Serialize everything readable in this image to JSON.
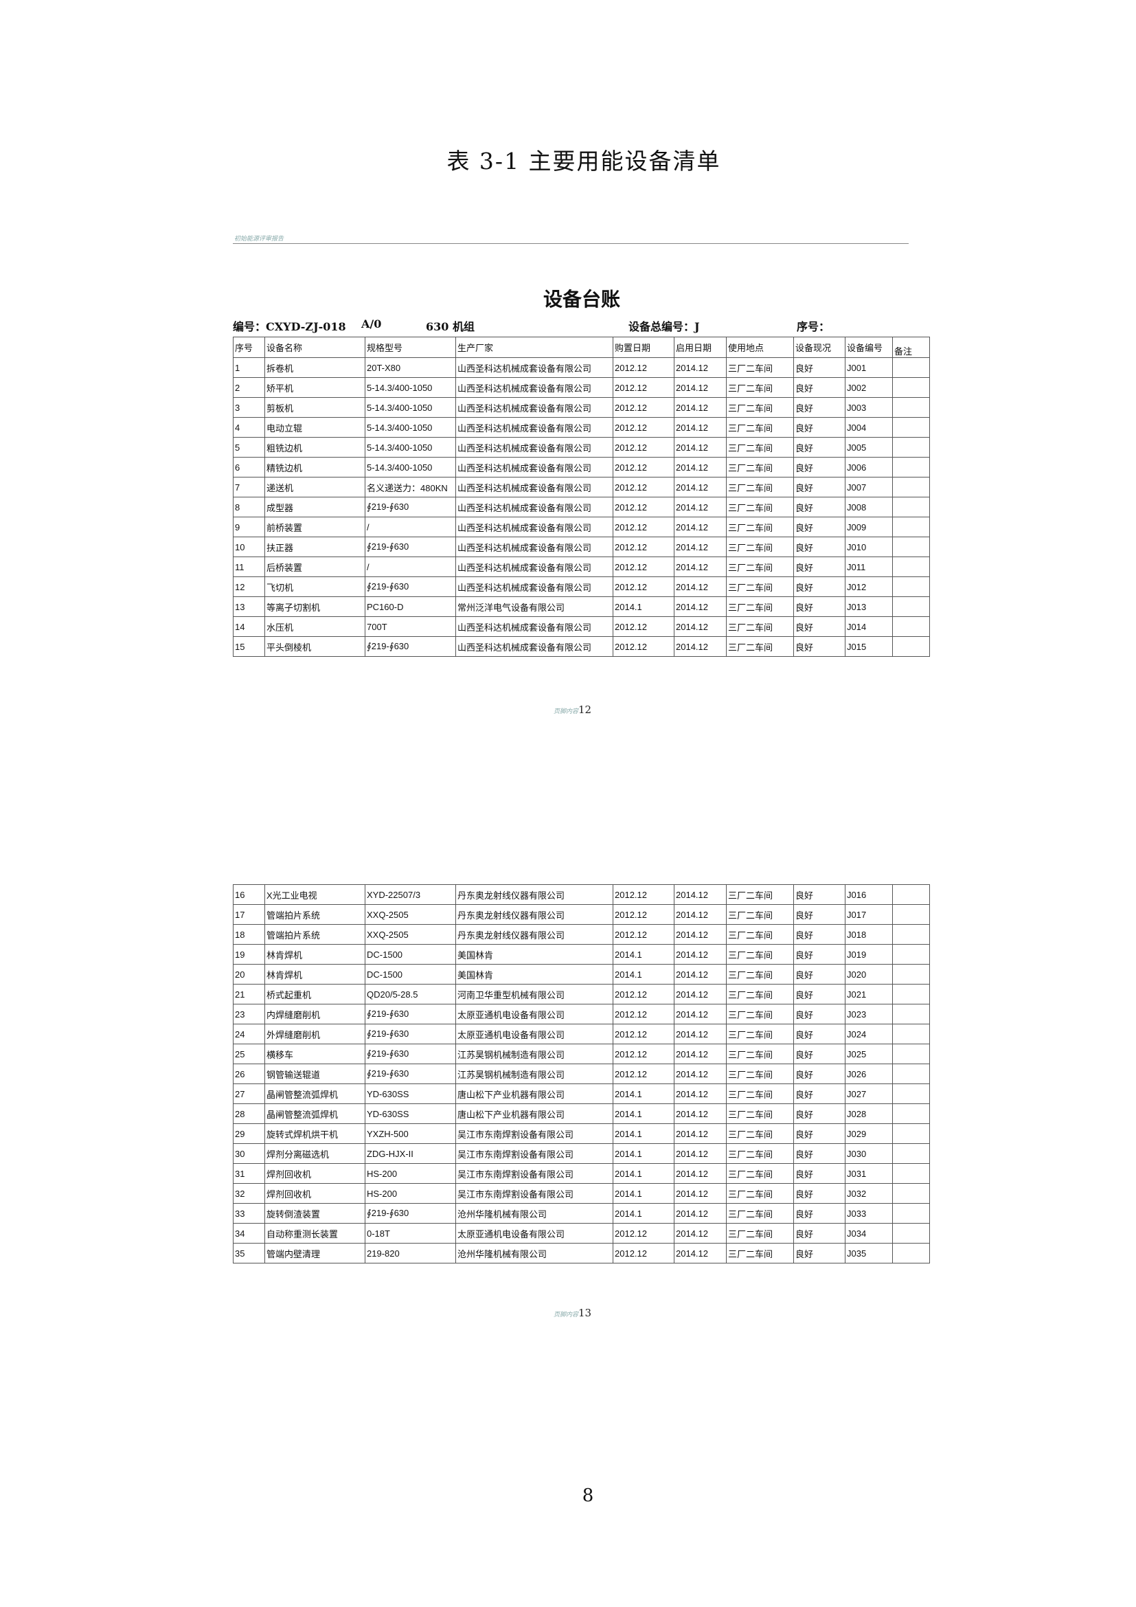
{
  "doc_title": "表 3-1  主要用能设备清单",
  "header_text": "初始能源评审报告",
  "ledger_title": "设备台账",
  "info": {
    "code": "编号：CXYD-ZJ-018",
    "rev": "A/0",
    "unit": "630 机组",
    "total_code": "设备总编号：J",
    "seq": "序号："
  },
  "columns": [
    "序号",
    "设备名称",
    "规格型号",
    "生产厂家",
    "购置日期",
    "启用日期",
    "使用地点",
    "设备现况",
    "设备编号",
    "备注"
  ],
  "rows1": [
    [
      "1",
      "拆卷机",
      "20T-X80",
      "山西圣科达机械成套设备有限公司",
      "2012.12",
      "2014.12",
      "三厂二车间",
      "良好",
      "J001",
      ""
    ],
    [
      "2",
      "矫平机",
      "5-14.3/400-1050",
      "山西圣科达机械成套设备有限公司",
      "2012.12",
      "2014.12",
      "三厂二车间",
      "良好",
      "J002",
      ""
    ],
    [
      "3",
      "剪板机",
      "5-14.3/400-1050",
      "山西圣科达机械成套设备有限公司",
      "2012.12",
      "2014.12",
      "三厂二车间",
      "良好",
      "J003",
      ""
    ],
    [
      "4",
      "电动立辊",
      "5-14.3/400-1050",
      "山西圣科达机械成套设备有限公司",
      "2012.12",
      "2014.12",
      "三厂二车间",
      "良好",
      "J004",
      ""
    ],
    [
      "5",
      "粗铣边机",
      "5-14.3/400-1050",
      "山西圣科达机械成套设备有限公司",
      "2012.12",
      "2014.12",
      "三厂二车间",
      "良好",
      "J005",
      ""
    ],
    [
      "6",
      "精铣边机",
      "5-14.3/400-1050",
      "山西圣科达机械成套设备有限公司",
      "2012.12",
      "2014.12",
      "三厂二车间",
      "良好",
      "J006",
      ""
    ],
    [
      "7",
      "递送机",
      "名义递送力：480KN",
      "山西圣科达机械成套设备有限公司",
      "2012.12",
      "2014.12",
      "三厂二车间",
      "良好",
      "J007",
      ""
    ],
    [
      "8",
      "成型器",
      "∮219-∮630",
      "山西圣科达机械成套设备有限公司",
      "2012.12",
      "2014.12",
      "三厂二车间",
      "良好",
      "J008",
      ""
    ],
    [
      "9",
      "前桥装置",
      "/",
      "山西圣科达机械成套设备有限公司",
      "2012.12",
      "2014.12",
      "三厂二车间",
      "良好",
      "J009",
      ""
    ],
    [
      "10",
      "扶正器",
      "∮219-∮630",
      "山西圣科达机械成套设备有限公司",
      "2012.12",
      "2014.12",
      "三厂二车间",
      "良好",
      "J010",
      ""
    ],
    [
      "11",
      "后桥装置",
      "/",
      "山西圣科达机械成套设备有限公司",
      "2012.12",
      "2014.12",
      "三厂二车间",
      "良好",
      "J011",
      ""
    ],
    [
      "12",
      "飞切机",
      "∮219-∮630",
      "山西圣科达机械成套设备有限公司",
      "2012.12",
      "2014.12",
      "三厂二车间",
      "良好",
      "J012",
      ""
    ],
    [
      "13",
      "等离子切割机",
      "PC160-D",
      "常州泛洋电气设备有限公司",
      "2014.1",
      "2014.12",
      "三厂二车间",
      "良好",
      "J013",
      ""
    ],
    [
      "14",
      "水压机",
      "700T",
      "山西圣科达机械成套设备有限公司",
      "2012.12",
      "2014.12",
      "三厂二车间",
      "良好",
      "J014",
      ""
    ],
    [
      "15",
      "平头倒棱机",
      "∮219-∮630",
      "山西圣科达机械成套设备有限公司",
      "2012.12",
      "2014.12",
      "三厂二车间",
      "良好",
      "J015",
      ""
    ]
  ],
  "footer1": {
    "label": "页脚内容",
    "num": "12"
  },
  "rows2": [
    [
      "16",
      "X光工业电视",
      "XYD-22507/3",
      "丹东奥龙射线仪器有限公司",
      "2012.12",
      "2014.12",
      "三厂二车间",
      "良好",
      "J016",
      ""
    ],
    [
      "17",
      "管端拍片系统",
      "XXQ-2505",
      "丹东奥龙射线仪器有限公司",
      "2012.12",
      "2014.12",
      "三厂二车间",
      "良好",
      "J017",
      ""
    ],
    [
      "18",
      "管端拍片系统",
      "XXQ-2505",
      "丹东奥龙射线仪器有限公司",
      "2012.12",
      "2014.12",
      "三厂二车间",
      "良好",
      "J018",
      ""
    ],
    [
      "19",
      "林肯焊机",
      "DC-1500",
      "美国林肯",
      "2014.1",
      "2014.12",
      "三厂二车间",
      "良好",
      "J019",
      ""
    ],
    [
      "20",
      "林肯焊机",
      "DC-1500",
      "美国林肯",
      "2014.1",
      "2014.12",
      "三厂二车间",
      "良好",
      "J020",
      ""
    ],
    [
      "21",
      "桥式起重机",
      "QD20/5-28.5",
      "河南卫华重型机械有限公司",
      "2012.12",
      "2014.12",
      "三厂二车间",
      "良好",
      "J021",
      ""
    ],
    [
      "23",
      "内焊缝磨削机",
      "∮219-∮630",
      "太原亚通机电设备有限公司",
      "2012.12",
      "2014.12",
      "三厂二车间",
      "良好",
      "J023",
      ""
    ],
    [
      "24",
      "外焊缝磨削机",
      "∮219-∮630",
      "太原亚通机电设备有限公司",
      "2012.12",
      "2014.12",
      "三厂二车间",
      "良好",
      "J024",
      ""
    ],
    [
      "25",
      "横移车",
      "∮219-∮630",
      "江苏昊钢机械制造有限公司",
      "2012.12",
      "2014.12",
      "三厂二车间",
      "良好",
      "J025",
      ""
    ],
    [
      "26",
      "钢管输送辊道",
      "∮219-∮630",
      "江苏昊钢机械制造有限公司",
      "2012.12",
      "2014.12",
      "三厂二车间",
      "良好",
      "J026",
      ""
    ],
    [
      "27",
      "晶闸管整流弧焊机",
      "YD-630SS",
      "唐山松下产业机器有限公司",
      "2014.1",
      "2014.12",
      "三厂二车间",
      "良好",
      "J027",
      ""
    ],
    [
      "28",
      "晶闸管整流弧焊机",
      "YD-630SS",
      "唐山松下产业机器有限公司",
      "2014.1",
      "2014.12",
      "三厂二车间",
      "良好",
      "J028",
      ""
    ],
    [
      "29",
      "旋转式焊机烘干机",
      "YXZH-500",
      "吴江市东南焊割设备有限公司",
      "2014.1",
      "2014.12",
      "三厂二车间",
      "良好",
      "J029",
      ""
    ],
    [
      "30",
      "焊剂分离磁选机",
      "ZDG-HJX-II",
      "吴江市东南焊割设备有限公司",
      "2014.1",
      "2014.12",
      "三厂二车间",
      "良好",
      "J030",
      ""
    ],
    [
      "31",
      "焊剂回收机",
      "HS-200",
      "吴江市东南焊割设备有限公司",
      "2014.1",
      "2014.12",
      "三厂二车间",
      "良好",
      "J031",
      ""
    ],
    [
      "32",
      "焊剂回收机",
      "HS-200",
      "吴江市东南焊割设备有限公司",
      "2014.1",
      "2014.12",
      "三厂二车间",
      "良好",
      "J032",
      ""
    ],
    [
      "33",
      "旋转倒渣装置",
      "∮219-∮630",
      "沧州华隆机械有限公司",
      "2014.1",
      "2014.12",
      "三厂二车间",
      "良好",
      "J033",
      ""
    ],
    [
      "34",
      "自动称重测长装置",
      "0-18T",
      "太原亚通机电设备有限公司",
      "2012.12",
      "2014.12",
      "三厂二车间",
      "良好",
      "J034",
      ""
    ],
    [
      "35",
      "管端内壁清理",
      "219-820",
      "沧州华隆机械有限公司",
      "2012.12",
      "2014.12",
      "三厂二车间",
      "良好",
      "J035",
      ""
    ]
  ],
  "footer2": {
    "label": "页脚内容",
    "num": "13"
  },
  "page_number": "8"
}
